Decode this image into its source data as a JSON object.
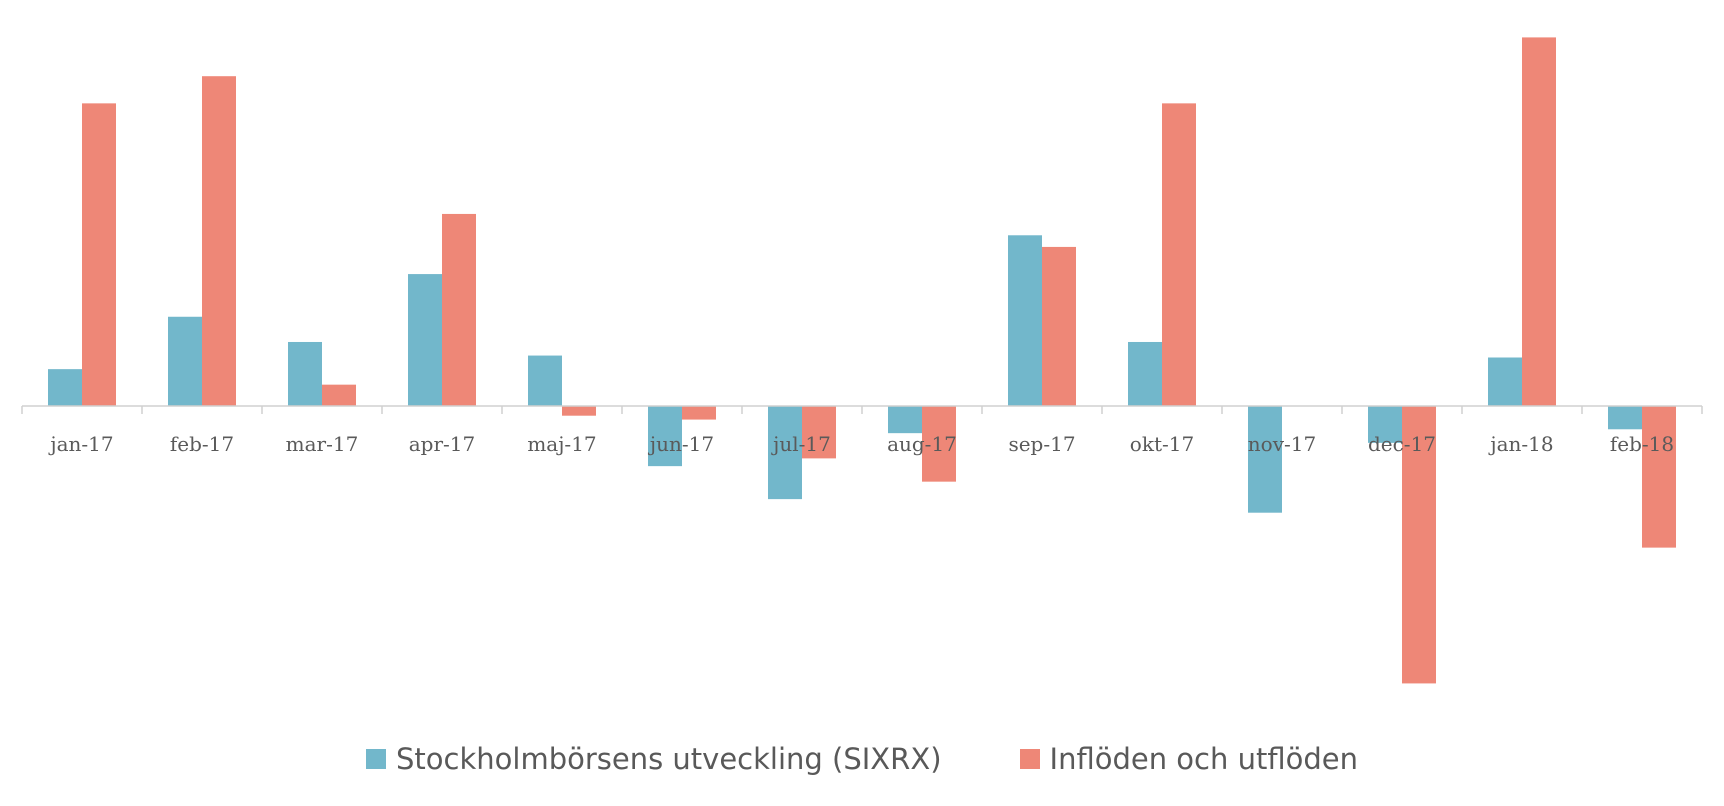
{
  "chart_data": {
    "type": "bar",
    "title": "",
    "xlabel": "",
    "ylabel": "",
    "ylim": [
      -14,
      20
    ],
    "grid": false,
    "legend_position": "bottom",
    "categories": [
      "jan-17",
      "feb-17",
      "mar-17",
      "apr-17",
      "maj-17",
      "jun-17",
      "jul-17",
      "aug-17",
      "sep-17",
      "okt-17",
      "nov-17",
      "dec-17",
      "jan-18",
      "feb-18"
    ],
    "series": [
      {
        "name": "Stockholmbörsens utveckling (SIXRX)",
        "color": "#72b7cb",
        "values": [
          1.9,
          4.6,
          3.3,
          6.8,
          2.6,
          -3.1,
          -4.8,
          -1.4,
          8.8,
          3.3,
          -5.5,
          -1.9,
          2.5,
          -1.2
        ]
      },
      {
        "name": "Inflöden och utflöden",
        "color": "#ee8777",
        "values": [
          15.6,
          17.0,
          1.1,
          9.9,
          -0.5,
          -0.7,
          -2.7,
          -3.9,
          8.2,
          15.6,
          0.0,
          -14.3,
          19.0,
          -7.3
        ]
      }
    ]
  }
}
